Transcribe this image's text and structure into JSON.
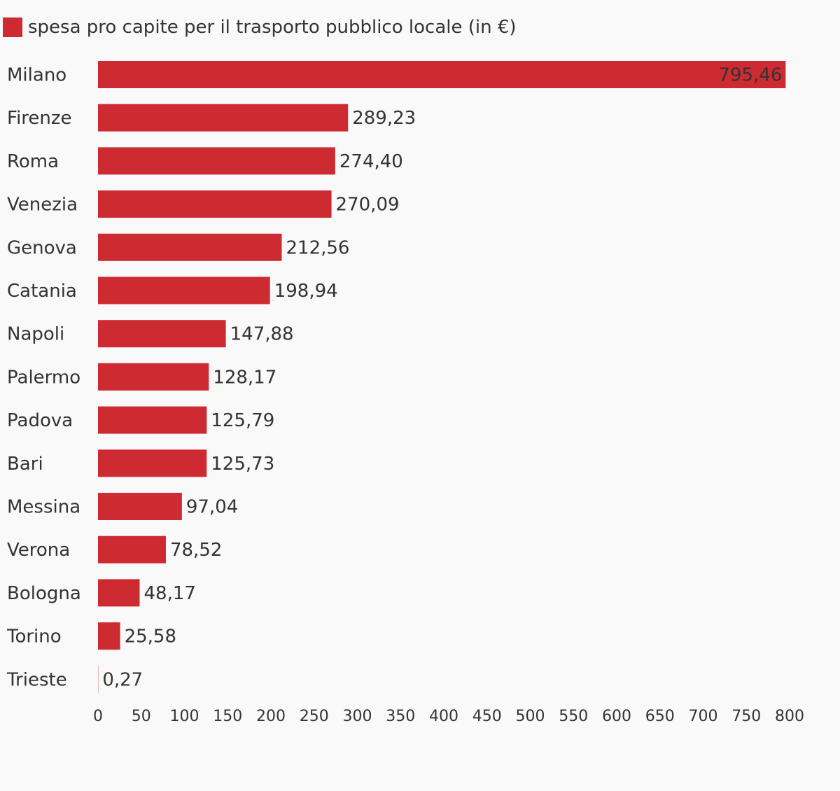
{
  "chart_data": {
    "type": "bar",
    "orientation": "horizontal",
    "title": "",
    "xlabel": "",
    "ylabel": "",
    "legend": {
      "entries": [
        "spesa pro capite per il trasporto pubblico locale (in €)"
      ],
      "position": "top-left"
    },
    "categories": [
      "Milano",
      "Firenze",
      "Roma",
      "Venezia",
      "Genova",
      "Catania",
      "Napoli",
      "Palermo",
      "Padova",
      "Bari",
      "Messina",
      "Verona",
      "Bologna",
      "Torino",
      "Trieste"
    ],
    "series": [
      {
        "name": "spesa pro capite per il trasporto pubblico locale (in €)",
        "color": "#cd2a31",
        "values": [
          795.46,
          289.23,
          274.4,
          270.09,
          212.56,
          198.94,
          147.88,
          128.17,
          125.79,
          125.73,
          97.04,
          78.52,
          48.17,
          25.58,
          0.27
        ],
        "labels": [
          "795,46",
          "289,23",
          "274,40",
          "270,09",
          "212,56",
          "198,94",
          "147,88",
          "128,17",
          "125,79",
          "125,73",
          "97,04",
          "78,52",
          "48,17",
          "25,58",
          "0,27"
        ]
      }
    ],
    "xlim": [
      0,
      800
    ],
    "xticks": [
      0,
      50,
      100,
      150,
      200,
      250,
      300,
      350,
      400,
      450,
      500,
      550,
      600,
      650,
      700,
      750,
      800
    ],
    "xtick_labels": [
      "0",
      "50",
      "100",
      "150",
      "200",
      "250",
      "300",
      "350",
      "400",
      "450",
      "500",
      "550",
      "600",
      "650",
      "700",
      "750",
      "800"
    ],
    "grid": false
  }
}
